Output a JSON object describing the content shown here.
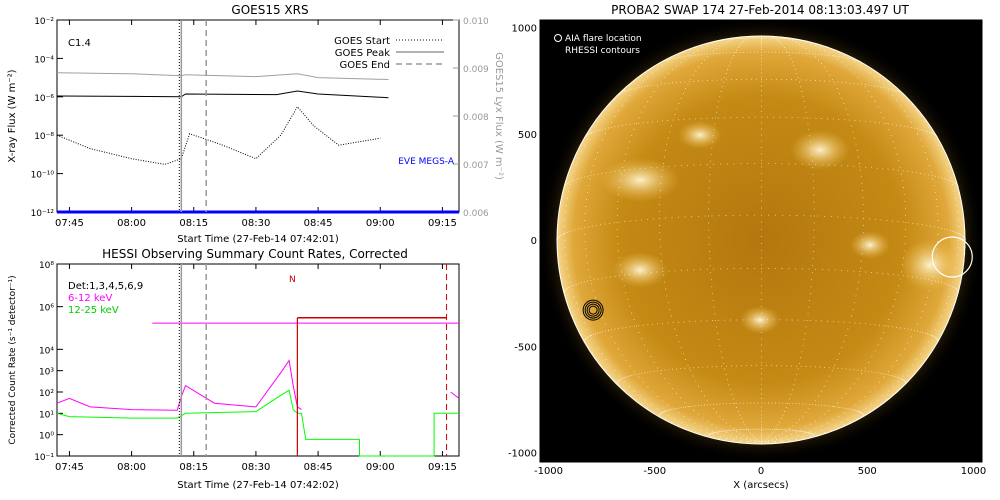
{
  "panels": {
    "goes": {
      "title": "GOES15 XRS",
      "class_label": "C1.4",
      "ylabel": "X-ray Flux (W m⁻²)",
      "ylabel_right": "GOES15 Lyx Flux (W m⁻²)",
      "xlabel": "Start Time (27-Feb-14 07:42:01)",
      "legend": [
        "GOES Start",
        "GOES Peak",
        "GOES End"
      ],
      "eve_label": "EVE MEGS-A"
    },
    "hessi": {
      "title": "HESSI Observing Summary Count Rates, Corrected",
      "ylabel": "Corrected Count Rate (s⁻¹ detector⁻¹)",
      "xlabel": "Start Time (27-Feb-14 07:42:02)",
      "legend": [
        "Det:1,3,4,5,6,9",
        "6-12 keV",
        "12-25 keV"
      ],
      "marker": "N"
    },
    "swap": {
      "title": "PROBA2 SWAP 174 27-Feb-2014 08:13:03.497 UT",
      "legend": [
        "AIA flare location",
        "RHESSI contours"
      ],
      "xlabel": "X (arcsecs)"
    }
  },
  "chart_data": [
    {
      "type": "line",
      "title": "GOES15 XRS",
      "xlabel": "Start Time (27-Feb-14 07:42:01)",
      "ylabel": "X-ray Flux (W m⁻²)",
      "xlim": [
        "07:42",
        "09:19"
      ],
      "ylim": [
        1e-12,
        0.01
      ],
      "yscale": "log",
      "x_ticks": [
        "07:45",
        "08:00",
        "08:15",
        "08:30",
        "08:45",
        "09:00",
        "09:15"
      ],
      "y_ticks": [
        "10⁻²",
        "10⁻⁴",
        "10⁻⁶",
        "10⁻⁸",
        "10⁻¹⁰",
        "10⁻¹²"
      ],
      "y2_ticks": [
        "0.010",
        "0.009",
        "0.008",
        "0.007",
        "0.006"
      ],
      "y2lim": [
        0.006,
        0.01
      ],
      "vlines": {
        "start": "08:12",
        "peak": "08:12",
        "end": "08:18"
      },
      "series": [
        {
          "name": "Lyx",
          "color": "#a0a0a0",
          "x": [
            "07:42",
            "08:00",
            "08:12",
            "08:13",
            "08:30",
            "08:40",
            "08:45",
            "09:02"
          ],
          "y": [
            0.0089,
            0.00888,
            0.00884,
            0.00886,
            0.00882,
            0.00888,
            0.0088,
            0.00876
          ]
        },
        {
          "color": "#000000",
          "x": [
            "07:42",
            "08:00",
            "08:12",
            "08:13",
            "08:35",
            "08:40",
            "08:45",
            "09:02"
          ],
          "y": [
            1.1e-06,
            1.05e-06,
            1e-06,
            1.4e-06,
            1.3e-06,
            2e-06,
            1.4e-06,
            9e-07
          ]
        },
        {
          "color": "#000000",
          "style": "dotted",
          "x": [
            "07:42",
            "07:50",
            "08:00",
            "08:08",
            "08:12",
            "08:14",
            "08:22",
            "08:30",
            "08:36",
            "08:40",
            "08:44",
            "08:50",
            "09:00"
          ],
          "y": [
            1e-08,
            2e-09,
            6e-10,
            3e-10,
            6e-10,
            1.2e-08,
            3e-09,
            6e-10,
            1e-08,
            3e-07,
            3e-08,
            3e-09,
            7e-09
          ]
        },
        {
          "name": "EVE MEGS-A",
          "color": "#0000ff",
          "x": [
            "07:42",
            "09:19"
          ],
          "y": [
            1e-12,
            1e-12
          ]
        }
      ]
    },
    {
      "type": "line",
      "title": "HESSI Observing Summary Count Rates, Corrected",
      "xlabel": "Start Time (27-Feb-14 07:42:02)",
      "ylabel": "Corrected Count Rate (s⁻¹ detector⁻¹)",
      "xlim": [
        "07:42",
        "09:19"
      ],
      "ylim": [
        0.1,
        100000000.0
      ],
      "yscale": "log",
      "x_ticks": [
        "07:45",
        "08:00",
        "08:15",
        "08:30",
        "08:45",
        "09:00",
        "09:15"
      ],
      "y_ticks": [
        "10⁸",
        "10⁶",
        "10⁴",
        "10³",
        "10²",
        "10¹",
        "10⁰",
        "10⁻¹"
      ],
      "vlines": {
        "start": "08:12",
        "end": "08:18",
        "red_solid": "08:40",
        "red_dashed": "09:16"
      },
      "series": [
        {
          "name": "6-12 keV",
          "color": "#ff00ff",
          "x": [
            "07:42",
            "07:45",
            "07:50",
            "08:00",
            "08:11",
            "08:12",
            "08:13",
            "08:20",
            "08:30",
            "08:36",
            "08:38",
            "08:39",
            "08:40",
            "08:41",
            "09:16",
            "09:17",
            "09:19"
          ],
          "y": [
            30,
            50,
            20,
            15,
            14,
            60,
            200,
            30,
            20,
            800,
            3000,
            200,
            20,
            15,
            null,
            100,
            50
          ]
        },
        {
          "name": "12-25 keV",
          "color": "#00ff00",
          "x": [
            "07:42",
            "07:45",
            "08:00",
            "08:11",
            "08:13",
            "08:30",
            "08:36",
            "08:38",
            "08:39",
            "08:40",
            "08:41",
            "08:42",
            "08:55",
            "08:55",
            "09:13",
            "09:13",
            "09:19"
          ],
          "y": [
            10,
            7,
            6,
            6,
            10,
            12,
            70,
            120,
            15,
            10,
            10,
            0.6,
            0.6,
            0.1,
            0.1,
            10,
            10
          ]
        },
        {
          "name": "attenuator",
          "color": "#ff00ff",
          "x": [
            "08:05",
            "08:40",
            "09:16",
            "09:19"
          ],
          "y": [
            170000.0,
            170000.0,
            170000.0,
            170000.0
          ]
        },
        {
          "name": "eclipse",
          "color": "#cc0000",
          "x": [
            "08:40",
            "09:16"
          ],
          "y": [
            300000.0,
            300000.0
          ]
        }
      ]
    }
  ],
  "map": {
    "x_ticks": [
      "-1000",
      "-500",
      "0",
      "500",
      "1000"
    ],
    "y_ticks": [
      "1000",
      "500",
      "0",
      "-500",
      "-1000"
    ],
    "aia_flare": {
      "x": 900,
      "y": -80
    },
    "rhessi_contour": {
      "x": -790,
      "y": -330
    }
  }
}
